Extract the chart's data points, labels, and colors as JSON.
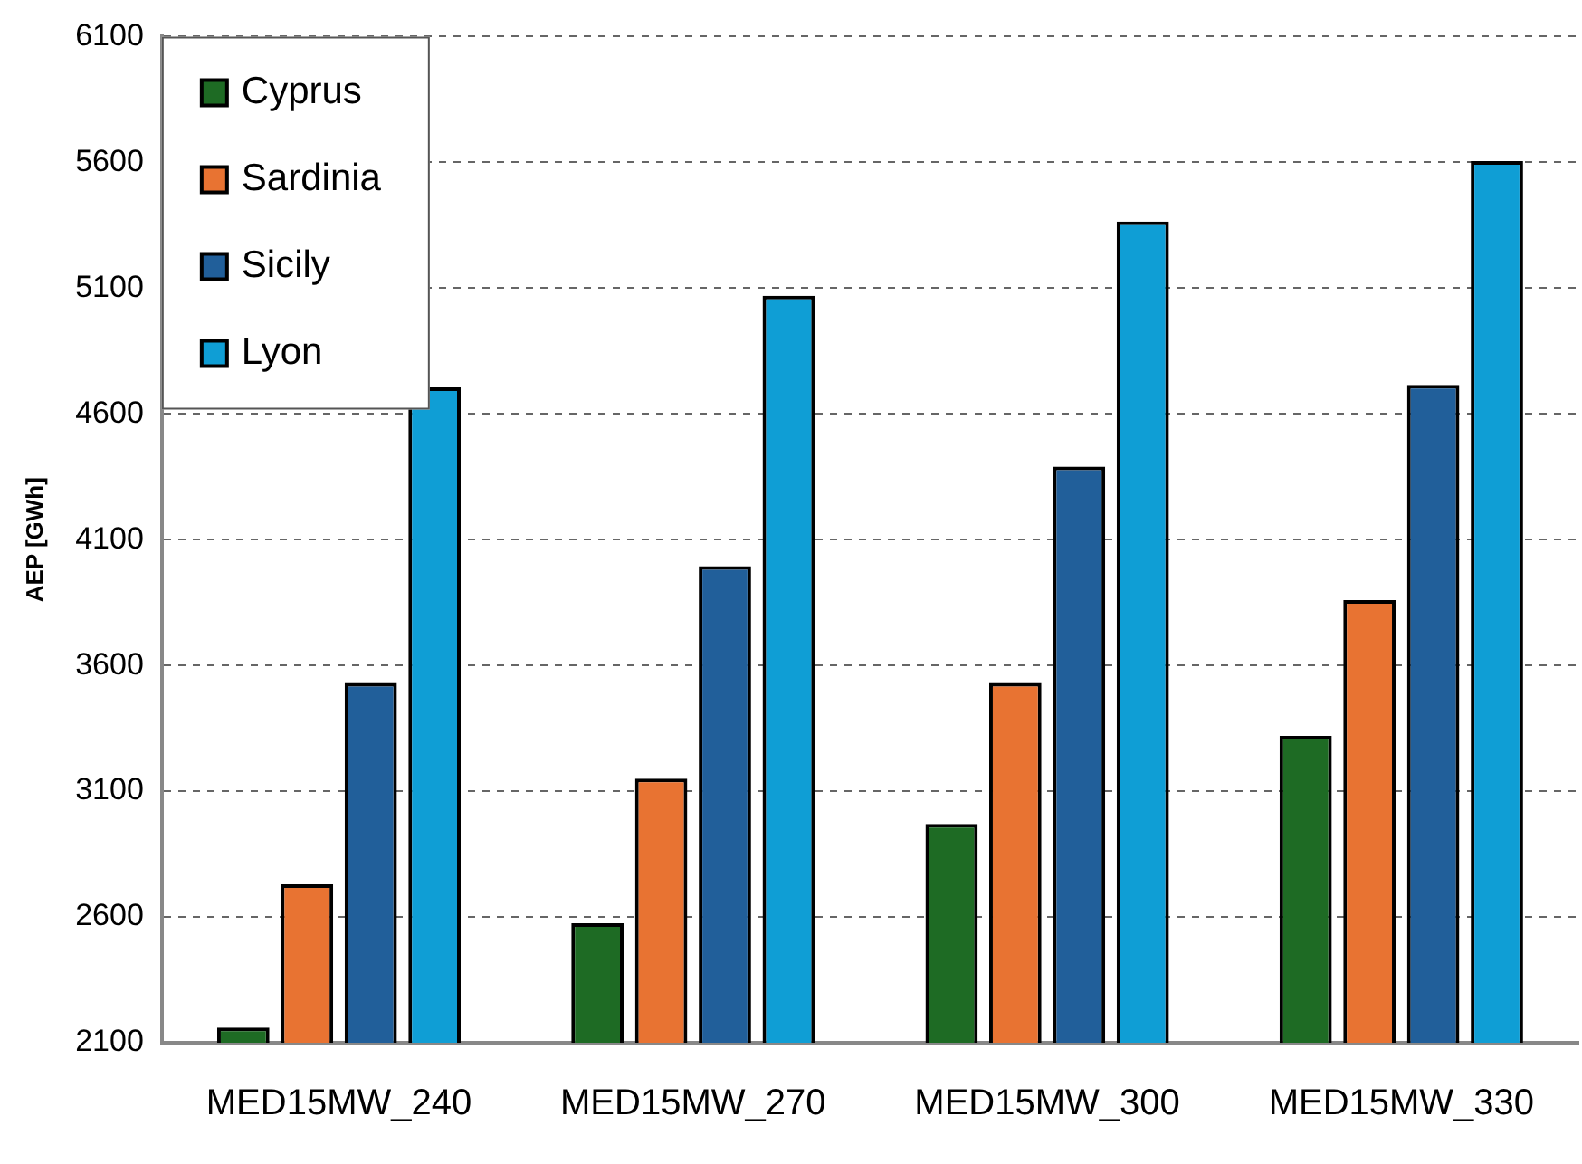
{
  "chart_data": {
    "type": "bar",
    "ylabel": "AEP [GWh]",
    "categories": [
      "MED15MW_240",
      "MED15MW_270",
      "MED15MW_300",
      "MED15MW_330"
    ],
    "series": [
      {
        "name": "Cyprus",
        "color": "#1e6b24",
        "values": [
          2160,
          2575,
          2970,
          3320
        ]
      },
      {
        "name": "Sardinia",
        "color": "#e87332",
        "values": [
          2730,
          3150,
          3530,
          3860
        ]
      },
      {
        "name": "Sicily",
        "color": "#215f9a",
        "values": [
          3530,
          3995,
          4390,
          4715
        ]
      },
      {
        "name": "Lyon",
        "color": "#0f9ed5",
        "values": [
          4705,
          5070,
          5365,
          5605
        ]
      }
    ],
    "ylim": [
      2100,
      6100
    ],
    "yticks": [
      2100,
      2600,
      3100,
      3600,
      4100,
      4600,
      5100,
      5600,
      6100
    ],
    "grid": "y",
    "legend": "top left"
  }
}
